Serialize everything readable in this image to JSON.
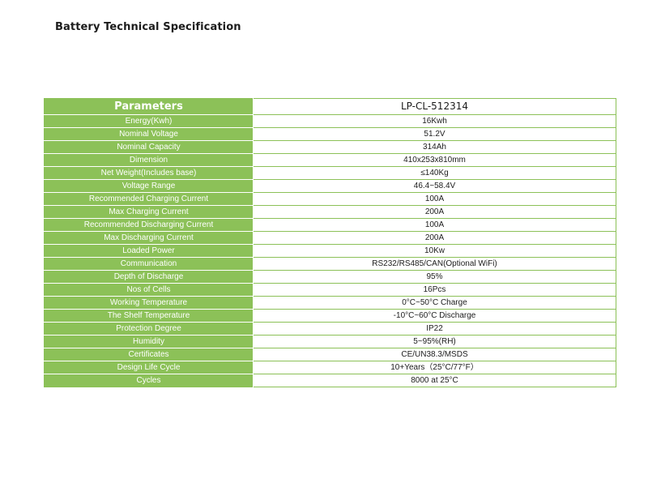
{
  "document": {
    "title": "Battery Technical Specification"
  },
  "table": {
    "header_parameter": "Parameters",
    "header_model": "LP-CL-512314",
    "rows": [
      {
        "parameter": "Energy(Kwh)",
        "value": "16Kwh"
      },
      {
        "parameter": "Nominal Voltage",
        "value": "51.2V"
      },
      {
        "parameter": "Nominal Capacity",
        "value": "314Ah"
      },
      {
        "parameter": "Dimension",
        "value": "410x253x810mm"
      },
      {
        "parameter": "Net Weight(Includes base)",
        "value": "≤140Kg"
      },
      {
        "parameter": "Voltage Range",
        "value": "46.4~58.4V"
      },
      {
        "parameter": "Recommended Charging Current",
        "value": "100A"
      },
      {
        "parameter": "Max Charging Current",
        "value": "200A"
      },
      {
        "parameter": "Recommended Discharging Current",
        "value": "100A"
      },
      {
        "parameter": "Max Discharging Current",
        "value": "200A"
      },
      {
        "parameter": "Loaded Power",
        "value": "10Kw"
      },
      {
        "parameter": "Communication",
        "value": "RS232/RS485/CAN(Optional WiFi)"
      },
      {
        "parameter": "Depth of Discharge",
        "value": "95%"
      },
      {
        "parameter": "Nos of Cells",
        "value": "16Pcs"
      },
      {
        "parameter": "Working Temperature",
        "value": "0°C~50°C Charge"
      },
      {
        "parameter": "The Shelf Temperature",
        "value": "-10°C~60°C Discharge"
      },
      {
        "parameter": "Protection Degree",
        "value": "IP22"
      },
      {
        "parameter": "Humidity",
        "value": "5~95%(RH)"
      },
      {
        "parameter": "Certificates",
        "value": "CE/UN38.3/MSDS"
      },
      {
        "parameter": "Design Life Cycle",
        "value": "10+Years（25°C/77°F）"
      },
      {
        "parameter": "Cycles",
        "value": "8000 at 25°C"
      }
    ]
  },
  "colors": {
    "accent_green": "#8cc158",
    "text_dark": "#1c1c1c",
    "background": "#ffffff"
  }
}
